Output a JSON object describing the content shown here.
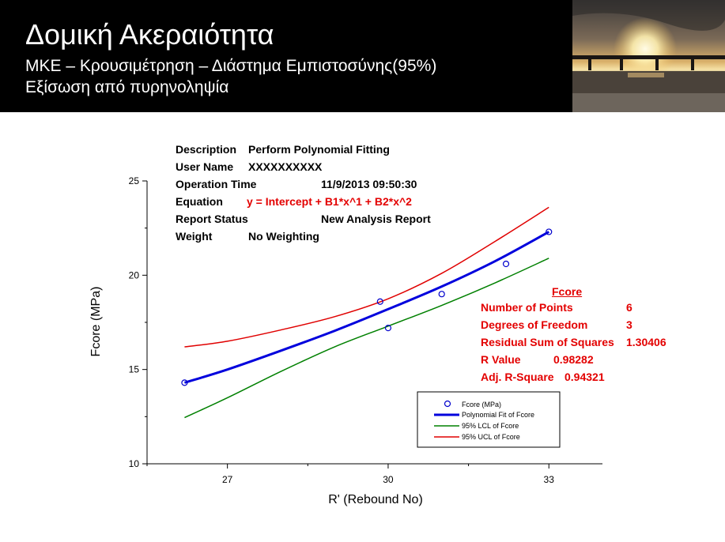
{
  "slide": {
    "title": "Δομική Ακεραιότητα",
    "subtitle_line1": "ΜΚΕ – Κρουσιμέτρηση  – Διάστημα  Εμπιστοσύνης(95%)",
    "subtitle_line2": "Εξίσωση από πυρηνοληψία"
  },
  "colors": {
    "header_bg": "#000000",
    "fit": "#0000dd",
    "lcl": "#008000",
    "ucl": "#e00000",
    "points": "#0000cc",
    "red_text": "#e30000"
  },
  "report": {
    "description_label": "Description",
    "description_value": "Perform Polynomial Fitting",
    "user_label": "User Name",
    "user_value": "XXXXXXXXXX",
    "time_label": "Operation Time",
    "time_value": "11/9/2013 09:50:30",
    "equation_label": "Equation",
    "equation_value": "y = Intercept + B1*x^1 + B2*x^2",
    "status_label": "Report Status",
    "status_value": "New Analysis Report",
    "weight_label": "Weight",
    "weight_value": "No Weighting"
  },
  "stats": {
    "heading": "Fcore",
    "points_label": "Number of Points",
    "points_value": "6",
    "dof_label": "Degrees of Freedom",
    "dof_value": "3",
    "rss_label": "Residual Sum of Squares",
    "rss_value": "1.30406",
    "r_label": "R Value",
    "r_value": "0.98282",
    "adjr_label": "Adj. R-Square",
    "adjr_value": "0.94321"
  },
  "chart_data": {
    "type": "scatter",
    "xlabel": "R' (Rebound No)",
    "ylabel": "Fcore (MPa)",
    "xlim": [
      25.5,
      34
    ],
    "ylim": [
      10,
      25
    ],
    "xticks": [
      "27",
      "30",
      "33"
    ],
    "yticks": [
      "10",
      "15",
      "20",
      "25"
    ],
    "grid": false,
    "legend_position": "bottom-right",
    "series": [
      {
        "name": "Fcore (MPa)",
        "kind": "points",
        "x": [
          26.2,
          29.85,
          30.0,
          31.0,
          32.2,
          33.0
        ],
        "y": [
          14.3,
          18.6,
          17.2,
          19.0,
          20.6,
          22.3
        ]
      },
      {
        "name": "Polynomial Fit of Fcore",
        "kind": "line",
        "x": [
          26.2,
          27.0,
          28.0,
          29.0,
          30.0,
          31.0,
          32.0,
          33.0
        ],
        "y": [
          14.3,
          15.0,
          16.0,
          17.05,
          18.2,
          19.4,
          20.75,
          22.3
        ]
      },
      {
        "name": "95% LCL of Fcore",
        "kind": "line",
        "x": [
          26.2,
          27.0,
          28.0,
          29.0,
          30.0,
          31.0,
          32.0,
          33.0
        ],
        "y": [
          12.45,
          13.5,
          14.9,
          16.2,
          17.3,
          18.4,
          19.6,
          20.9
        ]
      },
      {
        "name": "95% UCL of Fcore",
        "kind": "line",
        "x": [
          26.2,
          27.0,
          28.0,
          29.0,
          30.0,
          31.0,
          32.0,
          33.0
        ],
        "y": [
          16.2,
          16.5,
          17.1,
          17.8,
          18.75,
          20.1,
          21.8,
          23.6
        ]
      }
    ]
  }
}
